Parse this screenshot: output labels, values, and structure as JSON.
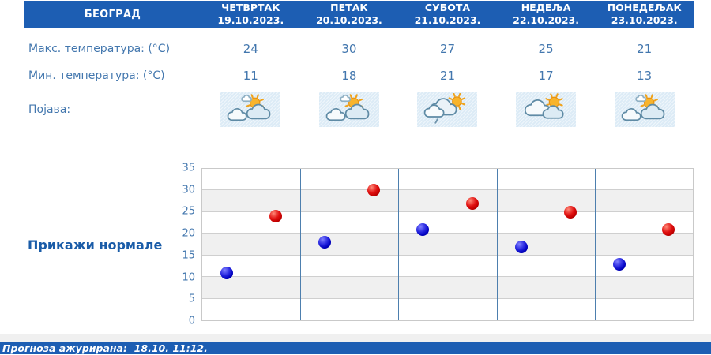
{
  "header": {
    "location": "БЕОГРАД",
    "days": [
      {
        "name": "ЧЕТВРТАК",
        "date": "19.10.2023."
      },
      {
        "name": "ПЕТАК",
        "date": "20.10.2023."
      },
      {
        "name": "СУБОТА",
        "date": "21.10.2023."
      },
      {
        "name": "НЕДЕЉА",
        "date": "22.10.2023."
      },
      {
        "name": "ПОНЕДЕЉАК",
        "date": "23.10.2023."
      }
    ]
  },
  "rows": {
    "max_label": "Макс. температура: (°C)",
    "min_label": "Мин. температура: (°C)",
    "phenomena_label": "Појава:",
    "max_values": [
      "24",
      "30",
      "27",
      "25",
      "21"
    ],
    "min_values": [
      "11",
      "18",
      "21",
      "17",
      "13"
    ],
    "icons": [
      "sun-behind-clouds-icon",
      "sun-behind-clouds-icon",
      "cloudy-sun-light-rain-icon",
      "mostly-cloudy-sun-icon",
      "sun-behind-clouds-icon"
    ]
  },
  "normals_button_label": "Прикажи нормале",
  "footer": {
    "updated_text": "Прогноза ажурирана:  18.10. 11:12."
  },
  "colors": {
    "header_bg": "#1d5eb3",
    "footer_bg": "#1d5eb3",
    "text_blue": "#4377ae",
    "normals_blue": "#1a5ca8",
    "min_dot": "#0000bb",
    "max_dot": "#c00000",
    "day_separator": "#4d7fae",
    "band_shaded": "#f0f0f0",
    "tile_bg": "#dcebf6"
  },
  "chart_data": {
    "type": "scatter",
    "title": "",
    "xlabel": "",
    "ylabel": "",
    "categories": [
      "19.10.2023.",
      "20.10.2023.",
      "21.10.2023.",
      "22.10.2023.",
      "23.10.2023."
    ],
    "series": [
      {
        "name": "Мин. температура (°C)",
        "color": "#0000bb",
        "values": [
          11,
          18,
          21,
          17,
          13
        ]
      },
      {
        "name": "Макс. температура (°C)",
        "color": "#c00000",
        "values": [
          24,
          30,
          27,
          25,
          21
        ]
      }
    ],
    "ylim": [
      0,
      35
    ],
    "ytick_step": 5,
    "yticks": [
      0,
      5,
      10,
      15,
      20,
      25,
      30,
      35
    ],
    "grid": "horizontal gridlines every 5 with alternating shaded bands; vertical day separators",
    "legend": "none"
  }
}
